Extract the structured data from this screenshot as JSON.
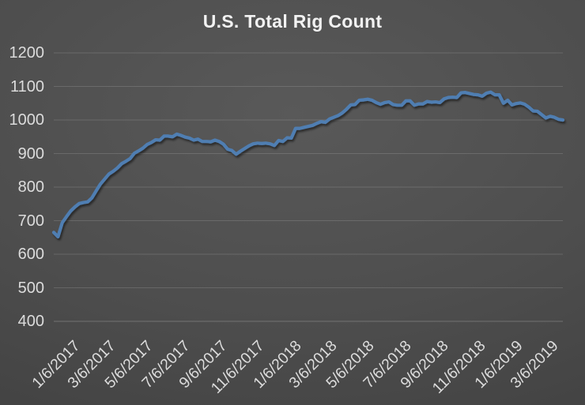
{
  "chart_data": {
    "type": "line",
    "title": "U.S. Total Rig Count",
    "legend": "none",
    "grid": "horizontal-only",
    "x_axis": {
      "label": "",
      "min_date": "1/6/2017",
      "max_date": "4/26/2019",
      "tick_labels": [
        "1/6/2017",
        "3/6/2017",
        "5/6/2017",
        "7/6/2017",
        "9/6/2017",
        "11/6/2017",
        "1/6/2018",
        "3/6/2018",
        "5/6/2018",
        "7/6/2018",
        "9/6/2018",
        "11/6/2018",
        "1/6/2019",
        "3/6/2019"
      ],
      "tick_label_rotation_deg": 45
    },
    "y_axis": {
      "label": "",
      "min": 400,
      "max": 1200,
      "step": 100,
      "tick_labels": [
        "1200",
        "1100",
        "1000",
        "900",
        "800",
        "700",
        "600",
        "500",
        "400"
      ]
    },
    "series": [
      {
        "name": "U.S. Total Rig Count",
        "start_date": "1/6/2017",
        "interval_days": 7,
        "values": [
          665,
          652,
          694,
          712,
          729,
          741,
          751,
          754,
          756,
          768,
          789,
          809,
          824,
          839,
          847,
          857,
          870,
          877,
          885,
          901,
          908,
          916,
          927,
          933,
          941,
          940,
          952,
          952,
          950,
          958,
          954,
          949,
          946,
          940,
          943,
          936,
          936,
          935,
          940,
          936,
          928,
          913,
          909,
          898,
          907,
          915,
          923,
          929,
          931,
          930,
          931,
          929,
          924,
          939,
          936,
          947,
          946,
          975,
          975,
          978,
          981,
          984,
          990,
          995,
          993,
          1003,
          1008,
          1013,
          1021,
          1032,
          1045,
          1046,
          1059,
          1060,
          1062,
          1059,
          1052,
          1047,
          1052,
          1054,
          1046,
          1044,
          1044,
          1057,
          1057,
          1044,
          1048,
          1048,
          1055,
          1053,
          1054,
          1052,
          1063,
          1067,
          1068,
          1067,
          1081,
          1082,
          1079,
          1076,
          1075,
          1071,
          1080,
          1083,
          1075,
          1075,
          1050,
          1059,
          1045,
          1049,
          1051,
          1047,
          1038,
          1027,
          1026,
          1016,
          1006,
          1011,
          1008,
          1002,
          1000
        ]
      }
    ],
    "colors": {
      "line": "#507eb2",
      "line_shadow": "#000000",
      "gridline": "rgba(255,255,255,0.14)",
      "axis_line": "rgba(255,255,255,0.22)",
      "tick_text": "#dcdcdc",
      "title_text": "#f2f2f2",
      "background_center": "#595959",
      "background_edge": "#3a3a3a"
    }
  }
}
